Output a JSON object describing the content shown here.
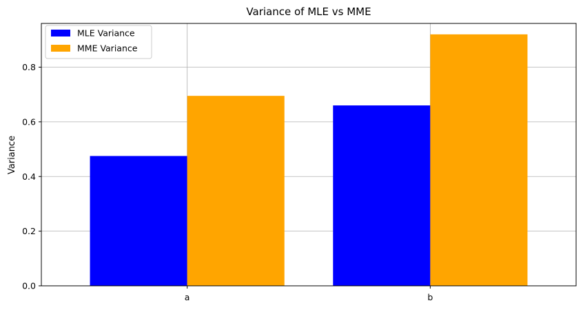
{
  "chart_data": {
    "type": "bar",
    "title": "Variance of MLE vs MME",
    "xlabel": "",
    "ylabel": "Variance",
    "categories": [
      "a",
      "b"
    ],
    "ylim": [
      0,
      0.96
    ],
    "yticks": [
      "0.0",
      "0.2",
      "0.4",
      "0.6",
      "0.8"
    ],
    "grid": true,
    "legend_position": "top-left",
    "series": [
      {
        "name": "MLE Variance",
        "color": "#0000ff",
        "values": [
          0.475,
          0.66
        ]
      },
      {
        "name": "MME Variance",
        "color": "#ffa500",
        "values": [
          0.695,
          0.92
        ]
      }
    ]
  }
}
